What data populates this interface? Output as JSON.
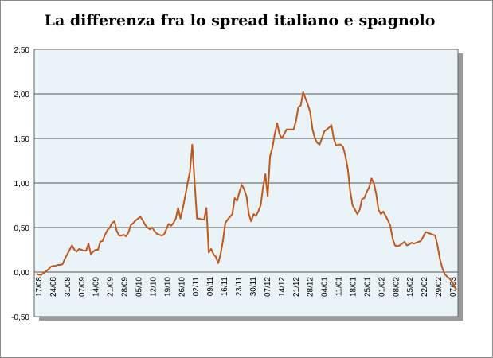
{
  "chart_data": {
    "type": "line",
    "title": "La differenza fra lo spread italiano e spagnolo",
    "xlabel": "",
    "ylabel": "",
    "ylim": [
      -0.5,
      2.5
    ],
    "y_ticks": [
      "2,50",
      "2,00",
      "1,50",
      "1,00",
      "0,50",
      "0,00",
      "-0,50"
    ],
    "y_tick_values": [
      2.5,
      2.0,
      1.5,
      1.0,
      0.5,
      0.0,
      -0.5
    ],
    "x_ticks": [
      "17/08",
      "24/08",
      "31/08",
      "07/09",
      "14/09",
      "21/09",
      "28/09",
      "05/10",
      "12/10",
      "19/10",
      "26/10",
      "02/11",
      "09/11",
      "16/11",
      "23/11",
      "30/11",
      "07/12",
      "14/12",
      "21/12",
      "28/12",
      "04/01",
      "11/01",
      "18/01",
      "25/01",
      "01/02",
      "08/02",
      "15/02",
      "22/02",
      "29/02",
      "07/03"
    ],
    "grid": true,
    "series": [
      {
        "color": "#c0571c",
        "values": [
          -0.02,
          -0.03,
          -0.03,
          -0.01,
          0.01,
          0.03,
          0.06,
          0.07,
          0.07,
          0.08,
          0.08,
          0.09,
          0.15,
          0.2,
          0.25,
          0.3,
          0.25,
          0.23,
          0.26,
          0.25,
          0.24,
          0.24,
          0.32,
          0.2,
          0.23,
          0.25,
          0.25,
          0.34,
          0.35,
          0.42,
          0.47,
          0.5,
          0.55,
          0.57,
          0.46,
          0.41,
          0.41,
          0.42,
          0.4,
          0.45,
          0.53,
          0.55,
          0.58,
          0.6,
          0.62,
          0.58,
          0.53,
          0.5,
          0.48,
          0.5,
          0.46,
          0.43,
          0.42,
          0.41,
          0.42,
          0.48,
          0.54,
          0.52,
          0.55,
          0.6,
          0.72,
          0.6,
          0.72,
          0.85,
          1.0,
          1.12,
          1.43,
          1.0,
          0.6,
          0.6,
          0.59,
          0.59,
          0.72,
          0.22,
          0.26,
          0.2,
          0.17,
          0.1,
          0.2,
          0.35,
          0.55,
          0.59,
          0.62,
          0.65,
          0.83,
          0.8,
          0.9,
          0.98,
          0.93,
          0.85,
          0.65,
          0.57,
          0.65,
          0.63,
          0.68,
          0.75,
          0.95,
          1.1,
          0.85,
          1.3,
          1.4,
          1.55,
          1.67,
          1.55,
          1.5,
          1.55,
          1.6,
          1.6,
          1.6,
          1.6,
          1.7,
          1.85,
          1.87,
          2.02,
          1.95,
          1.88,
          1.8,
          1.6,
          1.5,
          1.45,
          1.43,
          1.5,
          1.58,
          1.6,
          1.62,
          1.65,
          1.5,
          1.42,
          1.43,
          1.43,
          1.4,
          1.3,
          1.15,
          0.9,
          0.75,
          0.7,
          0.65,
          0.7,
          0.82,
          0.83,
          0.9,
          0.95,
          1.05,
          1.0,
          0.88,
          0.7,
          0.65,
          0.68,
          0.63,
          0.58,
          0.52,
          0.37,
          0.3,
          0.29,
          0.3,
          0.32,
          0.34,
          0.3,
          0.31,
          0.33,
          0.32,
          0.33,
          0.34,
          0.35,
          0.4,
          0.45,
          0.44,
          0.43,
          0.42,
          0.41,
          0.3,
          0.15,
          0.05,
          -0.02,
          -0.05,
          -0.07,
          -0.1,
          -0.15,
          -0.2
        ]
      }
    ]
  }
}
